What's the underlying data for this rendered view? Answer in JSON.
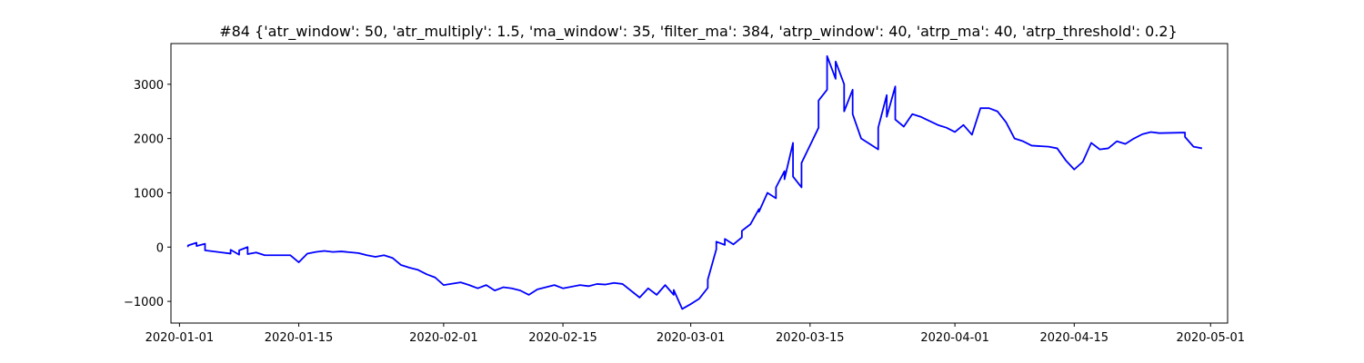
{
  "chart_data": {
    "type": "line",
    "title": "#84 {'atr_window': 50, 'atr_multiply': 1.5, 'ma_window': 35, 'filter_ma': 384, 'atrp_window': 40, 'atrp_ma': 40, 'atrp_threshold': 0.2}",
    "xlabel": "",
    "ylabel": "",
    "x_axis_type": "date",
    "xlim": [
      "2019-12-31",
      "2020-05-03"
    ],
    "ylim": [
      -1400,
      3750
    ],
    "x_ticks": [
      "2020-01-01",
      "2020-01-15",
      "2020-02-01",
      "2020-02-15",
      "2020-03-01",
      "2020-03-15",
      "2020-04-01",
      "2020-04-15",
      "2020-05-01"
    ],
    "y_ticks": [
      -1000,
      0,
      1000,
      2000,
      3000
    ],
    "grid": false,
    "legend": "none",
    "series": [
      {
        "color": "#0000ff",
        "points": [
          [
            "2020-01-02",
            0
          ],
          [
            "2020-01-02",
            30
          ],
          [
            "2020-01-03",
            80
          ],
          [
            "2020-01-03",
            20
          ],
          [
            "2020-01-04",
            60
          ],
          [
            "2020-01-04",
            -60
          ],
          [
            "2020-01-06",
            -100
          ],
          [
            "2020-01-07",
            -120
          ],
          [
            "2020-01-07",
            -50
          ],
          [
            "2020-01-08",
            -140
          ],
          [
            "2020-01-08",
            -60
          ],
          [
            "2020-01-09",
            0
          ],
          [
            "2020-01-09",
            -130
          ],
          [
            "2020-01-10",
            -100
          ],
          [
            "2020-01-11",
            -150
          ],
          [
            "2020-01-14",
            -150
          ],
          [
            "2020-01-15",
            -280
          ],
          [
            "2020-01-16",
            -120
          ],
          [
            "2020-01-17",
            -90
          ],
          [
            "2020-01-18",
            -70
          ],
          [
            "2020-01-19",
            -90
          ],
          [
            "2020-01-20",
            -80
          ],
          [
            "2020-01-22",
            -110
          ],
          [
            "2020-01-23",
            -150
          ],
          [
            "2020-01-24",
            -180
          ],
          [
            "2020-01-25",
            -150
          ],
          [
            "2020-01-26",
            -200
          ],
          [
            "2020-01-27",
            -330
          ],
          [
            "2020-01-28",
            -380
          ],
          [
            "2020-01-29",
            -420
          ],
          [
            "2020-01-30",
            -500
          ],
          [
            "2020-01-31",
            -560
          ],
          [
            "2020-02-01",
            -700
          ],
          [
            "2020-02-03",
            -650
          ],
          [
            "2020-02-04",
            -700
          ],
          [
            "2020-02-05",
            -760
          ],
          [
            "2020-02-06",
            -700
          ],
          [
            "2020-02-07",
            -800
          ],
          [
            "2020-02-08",
            -740
          ],
          [
            "2020-02-09",
            -760
          ],
          [
            "2020-02-10",
            -800
          ],
          [
            "2020-02-11",
            -880
          ],
          [
            "2020-02-12",
            -780
          ],
          [
            "2020-02-13",
            -740
          ],
          [
            "2020-02-14",
            -700
          ],
          [
            "2020-02-15",
            -760
          ],
          [
            "2020-02-17",
            -700
          ],
          [
            "2020-02-18",
            -720
          ],
          [
            "2020-02-19",
            -680
          ],
          [
            "2020-02-20",
            -690
          ],
          [
            "2020-02-21",
            -660
          ],
          [
            "2020-02-22",
            -680
          ],
          [
            "2020-02-24",
            -930
          ],
          [
            "2020-02-25",
            -760
          ],
          [
            "2020-02-26",
            -880
          ],
          [
            "2020-02-27",
            -700
          ],
          [
            "2020-02-28",
            -880
          ],
          [
            "2020-02-28",
            -790
          ],
          [
            "2020-02-29",
            -1140
          ],
          [
            "2020-03-01",
            -1050
          ],
          [
            "2020-03-02",
            -950
          ],
          [
            "2020-03-03",
            -750
          ],
          [
            "2020-03-03",
            -600
          ],
          [
            "2020-03-04",
            -40
          ],
          [
            "2020-03-04",
            100
          ],
          [
            "2020-03-05",
            40
          ],
          [
            "2020-03-05",
            150
          ],
          [
            "2020-03-06",
            50
          ],
          [
            "2020-03-07",
            180
          ],
          [
            "2020-03-07",
            300
          ],
          [
            "2020-03-08",
            420
          ],
          [
            "2020-03-09",
            700
          ],
          [
            "2020-03-09",
            650
          ],
          [
            "2020-03-10",
            1000
          ],
          [
            "2020-03-11",
            900
          ],
          [
            "2020-03-11",
            1100
          ],
          [
            "2020-03-12",
            1400
          ],
          [
            "2020-03-12",
            1250
          ],
          [
            "2020-03-13",
            1920
          ],
          [
            "2020-03-13",
            1300
          ],
          [
            "2020-03-14",
            1100
          ],
          [
            "2020-03-14",
            1550
          ],
          [
            "2020-03-16",
            2200
          ],
          [
            "2020-03-16",
            2700
          ],
          [
            "2020-03-17",
            2900
          ],
          [
            "2020-03-17",
            3520
          ],
          [
            "2020-03-18",
            3100
          ],
          [
            "2020-03-18",
            3420
          ],
          [
            "2020-03-19",
            3000
          ],
          [
            "2020-03-19",
            2500
          ],
          [
            "2020-03-20",
            2900
          ],
          [
            "2020-03-20",
            2450
          ],
          [
            "2020-03-21",
            2000
          ],
          [
            "2020-03-23",
            1800
          ],
          [
            "2020-03-23",
            2200
          ],
          [
            "2020-03-24",
            2800
          ],
          [
            "2020-03-24",
            2400
          ],
          [
            "2020-03-25",
            2960
          ],
          [
            "2020-03-25",
            2350
          ],
          [
            "2020-03-26",
            2220
          ],
          [
            "2020-03-27",
            2450
          ],
          [
            "2020-03-28",
            2400
          ],
          [
            "2020-03-30",
            2250
          ],
          [
            "2020-03-31",
            2200
          ],
          [
            "2020-04-01",
            2120
          ],
          [
            "2020-04-02",
            2250
          ],
          [
            "2020-04-03",
            2070
          ],
          [
            "2020-04-04",
            2560
          ],
          [
            "2020-04-05",
            2560
          ],
          [
            "2020-04-06",
            2500
          ],
          [
            "2020-04-07",
            2300
          ],
          [
            "2020-04-08",
            2000
          ],
          [
            "2020-04-09",
            1950
          ],
          [
            "2020-04-10",
            1870
          ],
          [
            "2020-04-12",
            1850
          ],
          [
            "2020-04-13",
            1820
          ],
          [
            "2020-04-14",
            1600
          ],
          [
            "2020-04-15",
            1430
          ],
          [
            "2020-04-16",
            1570
          ],
          [
            "2020-04-17",
            1920
          ],
          [
            "2020-04-18",
            1800
          ],
          [
            "2020-04-19",
            1820
          ],
          [
            "2020-04-20",
            1950
          ],
          [
            "2020-04-21",
            1900
          ],
          [
            "2020-04-22",
            2000
          ],
          [
            "2020-04-23",
            2080
          ],
          [
            "2020-04-24",
            2120
          ],
          [
            "2020-04-25",
            2100
          ],
          [
            "2020-04-28",
            2110
          ],
          [
            "2020-04-28",
            2030
          ],
          [
            "2020-04-29",
            1850
          ],
          [
            "2020-04-30",
            1820
          ]
        ]
      }
    ]
  }
}
